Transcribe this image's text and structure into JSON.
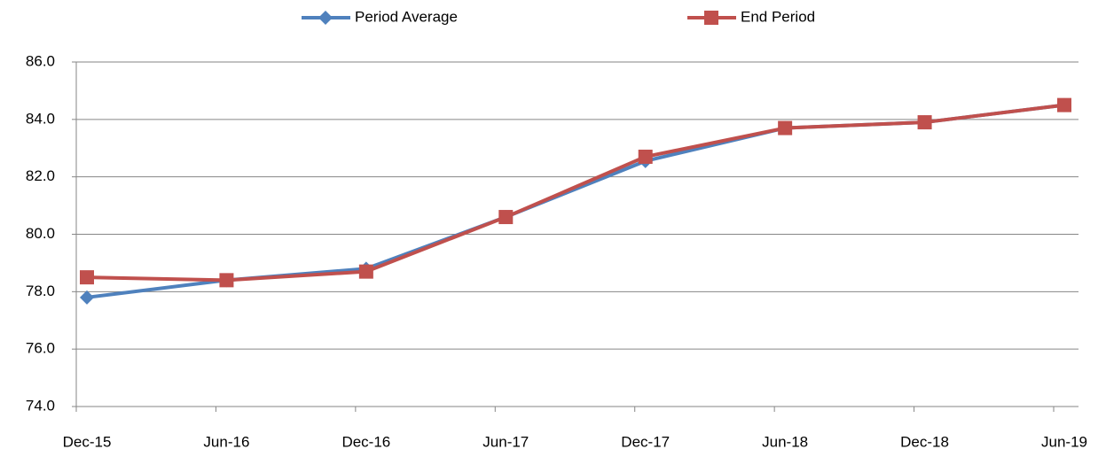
{
  "chart_data": {
    "type": "line",
    "categories": [
      "Dec-15",
      "Jun-16",
      "Dec-16",
      "Jun-17",
      "Dec-17",
      "Jun-18",
      "Dec-18",
      "Jun-19"
    ],
    "series": [
      {
        "name": "Period Average",
        "color": "#4f81bd",
        "marker": "diamond",
        "values": [
          77.8,
          78.4,
          78.8,
          80.6,
          82.55,
          83.7,
          83.9,
          84.5
        ]
      },
      {
        "name": "End Period",
        "color": "#c0504d",
        "marker": "square",
        "values": [
          78.5,
          78.4,
          78.7,
          80.6,
          82.7,
          83.7,
          83.9,
          84.5
        ]
      }
    ],
    "ylim": [
      74,
      86
    ],
    "yticks": [
      {
        "value": 74,
        "label": "74.0"
      },
      {
        "value": 76,
        "label": "76.0"
      },
      {
        "value": 78,
        "label": "78.0"
      },
      {
        "value": 80,
        "label": "80.0"
      },
      {
        "value": 82,
        "label": "82.0"
      },
      {
        "value": 84,
        "label": "84.0"
      },
      {
        "value": 86,
        "label": "86.0"
      }
    ],
    "grid": true,
    "legend": "top"
  }
}
